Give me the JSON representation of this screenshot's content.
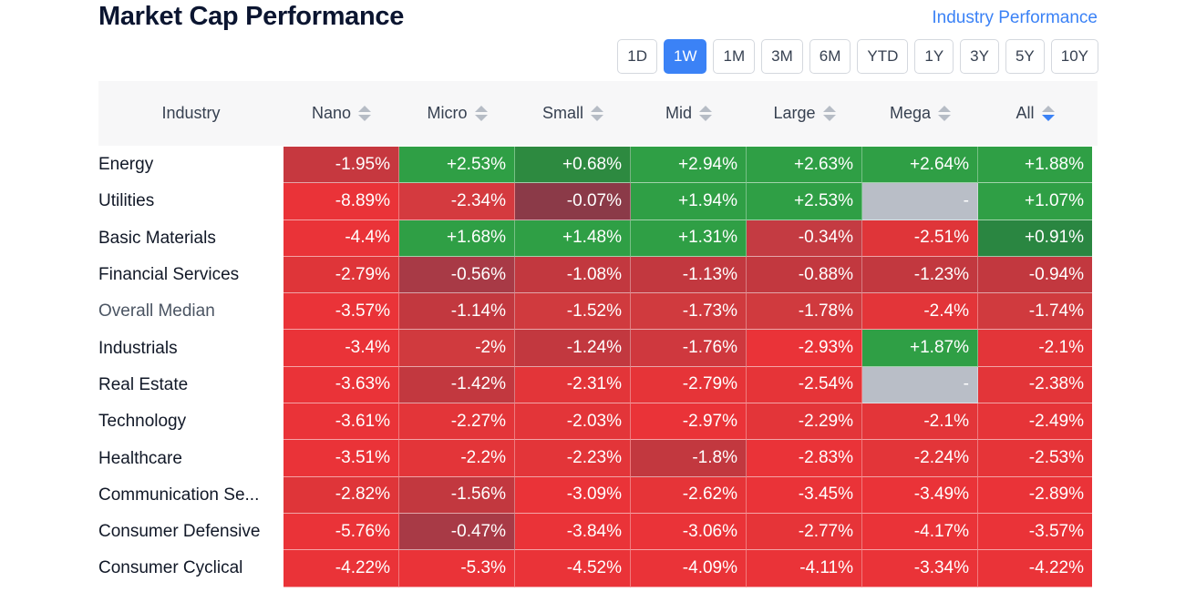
{
  "title": "Market Cap Performance",
  "industry_link": "Industry Performance",
  "periods": [
    "1D",
    "1W",
    "1M",
    "3M",
    "6M",
    "YTD",
    "1Y",
    "3Y",
    "5Y",
    "10Y"
  ],
  "active_period": "1W",
  "columns": [
    "Industry",
    "Nano",
    "Micro",
    "Small",
    "Mid",
    "Large",
    "Mega",
    "All"
  ],
  "sorted_column": "All",
  "colors": {
    "green": "#2e9d45",
    "dark_green": "#2a7d3f",
    "mid_green": "#3a9a52",
    "red": "#ea3338",
    "dark_red": "#c43b42",
    "maroon": "#8b3a48",
    "gray": "#b9bec7",
    "accent": "#3b82f6"
  },
  "rows": [
    {
      "name": "Energy",
      "values": [
        "-1.95%",
        "+2.53%",
        "+0.68%",
        "+2.94%",
        "+2.63%",
        "+2.64%",
        "+1.88%"
      ],
      "colors": [
        "#c6383f",
        "#2f9f45",
        "#2d8a40",
        "#2f9f45",
        "#2f9f45",
        "#2f9f45",
        "#2f9f45"
      ]
    },
    {
      "name": "Utilities",
      "values": [
        "-8.89%",
        "-2.34%",
        "-0.07%",
        "+1.94%",
        "+2.53%",
        "-",
        "+1.07%"
      ],
      "colors": [
        "#ea3338",
        "#d43a3f",
        "#8b3a48",
        "#2f9f45",
        "#2f9f45",
        "#b9bec7",
        "#2f9f45"
      ]
    },
    {
      "name": "Basic Materials",
      "values": [
        "-4.4%",
        "+1.68%",
        "+1.48%",
        "+1.31%",
        "-0.34%",
        "-2.51%",
        "+0.91%"
      ],
      "colors": [
        "#ea3338",
        "#2f9f45",
        "#2f9f45",
        "#2f9f45",
        "#c43b42",
        "#df3539",
        "#2a8641"
      ]
    },
    {
      "name": "Financial Services",
      "values": [
        "-2.79%",
        "-0.56%",
        "-1.08%",
        "-1.13%",
        "-0.88%",
        "-1.23%",
        "-0.94%"
      ],
      "colors": [
        "#df3539",
        "#a83a46",
        "#c2383f",
        "#c2383f",
        "#c2383f",
        "#c2383f",
        "#c2383f"
      ]
    },
    {
      "name": "Overall Median",
      "values": [
        "-3.57%",
        "-1.14%",
        "-1.52%",
        "-1.73%",
        "-1.78%",
        "-2.4%",
        "-1.74%"
      ],
      "colors": [
        "#ea3338",
        "#c2383f",
        "#d03a3e",
        "#d03a3e",
        "#d03a3e",
        "#e33539",
        "#d03a3e"
      ]
    },
    {
      "name": "Industrials",
      "values": [
        "-3.4%",
        "-2%",
        "-1.24%",
        "-1.76%",
        "-2.93%",
        "+1.87%",
        "-2.1%"
      ],
      "colors": [
        "#ea3338",
        "#d03a3e",
        "#c2383f",
        "#cf383e",
        "#ea3338",
        "#2f9f45",
        "#e33539"
      ]
    },
    {
      "name": "Real Estate",
      "values": [
        "-3.63%",
        "-1.42%",
        "-2.31%",
        "-2.79%",
        "-2.54%",
        "-",
        "-2.38%"
      ],
      "colors": [
        "#ea3338",
        "#c2383f",
        "#e33539",
        "#e63438",
        "#e63438",
        "#b9bec7",
        "#e33539"
      ]
    },
    {
      "name": "Technology",
      "values": [
        "-3.61%",
        "-2.27%",
        "-2.03%",
        "-2.97%",
        "-2.29%",
        "-2.1%",
        "-2.49%"
      ],
      "colors": [
        "#ea3338",
        "#e33539",
        "#e33539",
        "#ea3338",
        "#e33539",
        "#e33539",
        "#e63438"
      ]
    },
    {
      "name": "Healthcare",
      "values": [
        "-3.51%",
        "-2.2%",
        "-2.23%",
        "-1.8%",
        "-2.83%",
        "-2.24%",
        "-2.53%"
      ],
      "colors": [
        "#ea3338",
        "#e33539",
        "#e33539",
        "#c2383f",
        "#ea3338",
        "#e33539",
        "#e63438"
      ]
    },
    {
      "name": "Communication Se...",
      "values": [
        "-2.82%",
        "-1.56%",
        "-3.09%",
        "-2.62%",
        "-3.45%",
        "-3.49%",
        "-2.89%"
      ],
      "colors": [
        "#df3539",
        "#c2383f",
        "#ea3338",
        "#e63438",
        "#ea3338",
        "#ea3338",
        "#ea3338"
      ]
    },
    {
      "name": "Consumer Defensive",
      "values": [
        "-5.76%",
        "-0.47%",
        "-3.84%",
        "-3.06%",
        "-2.77%",
        "-4.17%",
        "-3.57%"
      ],
      "colors": [
        "#ea3338",
        "#a83a46",
        "#ea3338",
        "#ea3338",
        "#e63438",
        "#ea3338",
        "#ea3338"
      ]
    },
    {
      "name": "Consumer Cyclical",
      "values": [
        "-4.22%",
        "-5.3%",
        "-4.52%",
        "-4.09%",
        "-4.11%",
        "-3.34%",
        "-4.22%"
      ],
      "colors": [
        "#ea3338",
        "#ea3338",
        "#ea3338",
        "#ea3338",
        "#ea3338",
        "#ea3338",
        "#ea3338"
      ]
    }
  ]
}
